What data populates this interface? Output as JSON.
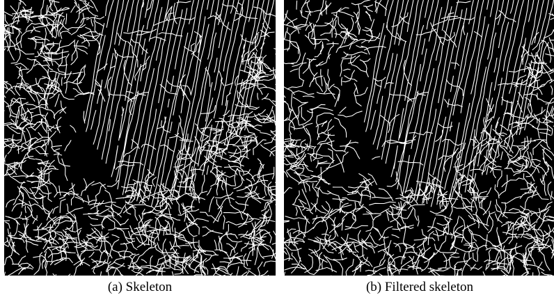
{
  "figures": [
    {
      "caption": "(a) Skeleton"
    },
    {
      "caption": "(b) Filtered skeleton"
    }
  ]
}
